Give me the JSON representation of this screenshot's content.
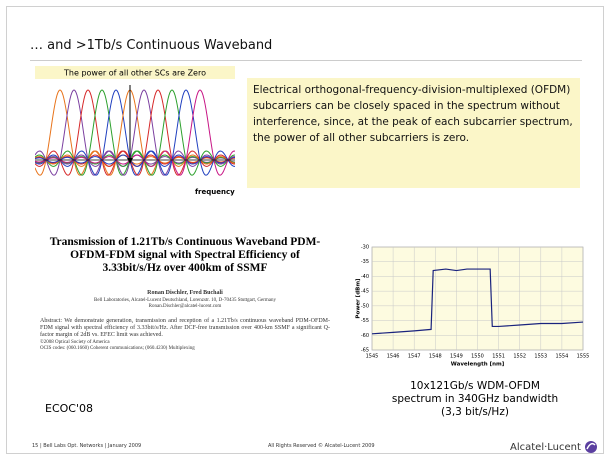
{
  "title": "… and >1Tb/s Continuous Waveband",
  "ofdm_figure": {
    "label": "The power of all other SCs are Zero",
    "axis_label": "frequency"
  },
  "description": "Electrical orthogonal-frequency-division-multiplexed (OFDM) subcarriers can be closely spaced in the spectrum without interference, since, at the peak of each subcarrier spectrum, the power of all other subcarriers is zero.",
  "paper": {
    "title": "Transmission of 1.21Tb/s Continuous Waveband PDM-OFDM-FDM signal with Spectral Efficiency of 3.33bit/s/Hz over 400km of SSMF",
    "authors": "Ronan Dischler, Fred Buchali",
    "affiliation": "Bell Laboratories, Alcatel-Lucent Deutschland, Lorenzstr. 10, D-70435 Stuttgart, Germany",
    "email": "Ronan.Dischler@alcatel-lucent.com",
    "abstract": "Abstract: We demonstrate generation, transmission and reception of a 1.21Tb/s continuous waveband PDM-OFDM-FDM signal with spectral efficiency of 3.33bit/s/Hz. After DCF-free transmission over 400-km SSMF a significant Q-factor margin of 2dB vs. EFEC limit was achieved.",
    "copyright": "©2008 Optical Society of America",
    "ocis": "OCIS codes: (060.1660) Coherent communications; (060.4230) Multiplexing",
    "venue": "ECOC'08"
  },
  "chart_data": {
    "type": "line",
    "x_label": "Wavelength [nm]",
    "y_label": "Power [dBm]",
    "x": [
      1545,
      1546,
      1547,
      1547.8,
      1547.9,
      1548.5,
      1549,
      1549.5,
      1550,
      1550.6,
      1550.7,
      1551,
      1552,
      1553,
      1554,
      1555
    ],
    "values": [
      -59.5,
      -59,
      -58.5,
      -58,
      -38,
      -37.5,
      -38,
      -37.5,
      -37.5,
      -37.5,
      -57,
      -57,
      -56.5,
      -56,
      -56,
      -55.5
    ],
    "color": "#1a237e",
    "xlim": [
      1545,
      1555
    ],
    "ylim": [
      -65,
      -30
    ],
    "xticks": [
      1545,
      1546,
      1547,
      1548,
      1549,
      1550,
      1551,
      1552,
      1553,
      1554,
      1555
    ],
    "yticks": [
      -30,
      -35,
      -40,
      -45,
      -50,
      -55,
      -60,
      -65
    ],
    "grid": true
  },
  "caption": [
    "10x121Gb/s WDM-OFDM",
    "spectrum in 340GHz bandwidth",
    "(3,3 bit/s/Hz)"
  ],
  "footer": {
    "left": "15 | Bell Labs Opt. Networks | January 2009",
    "center": "All Rights Reserved © Alcatel-Lucent 2009",
    "logo": "Alcatel·Lucent"
  }
}
